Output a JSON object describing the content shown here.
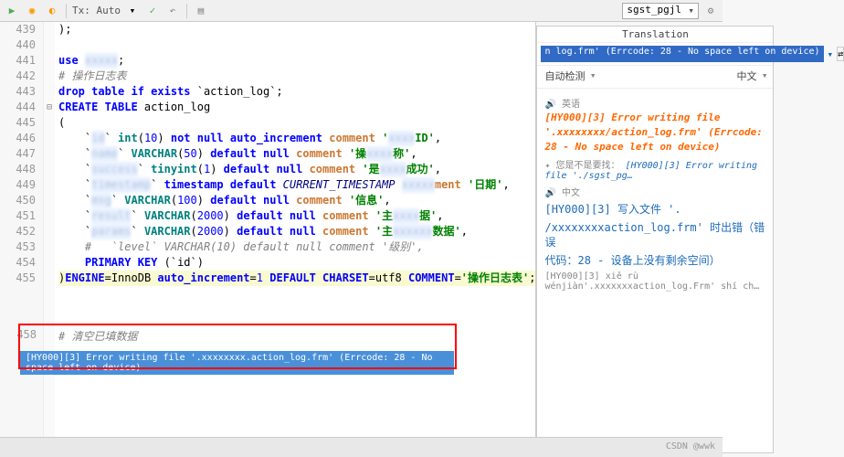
{
  "toolbar": {
    "tx_label": "Tx: Auto",
    "connection": "sgst_pgjl"
  },
  "code": {
    "lines": [
      {
        "n": 439,
        "fold": "",
        "segs": [
          {
            "t": ");",
            "c": ""
          }
        ]
      },
      {
        "n": 440,
        "fold": "",
        "segs": []
      },
      {
        "n": 441,
        "fold": "",
        "segs": [
          {
            "t": "use ",
            "c": "kw"
          },
          {
            "t": "xxxxx",
            "c": "blur"
          },
          {
            "t": ";",
            "c": ""
          }
        ]
      },
      {
        "n": 442,
        "fold": "",
        "segs": [
          {
            "t": "# 操作日志表",
            "c": "cmt"
          }
        ]
      },
      {
        "n": 443,
        "fold": "",
        "segs": [
          {
            "t": "drop table if exists",
            "c": "kw"
          },
          {
            "t": " `action_log`;",
            "c": ""
          }
        ]
      },
      {
        "n": 444,
        "fold": "⊟",
        "segs": [
          {
            "t": "CREATE TABLE",
            "c": "kw"
          },
          {
            "t": " action_log",
            "c": ""
          }
        ]
      },
      {
        "n": 445,
        "fold": "",
        "segs": [
          {
            "t": "(",
            "c": ""
          }
        ]
      },
      {
        "n": 446,
        "fold": "",
        "segs": [
          {
            "t": "    `",
            "c": ""
          },
          {
            "t": "id",
            "c": "blur"
          },
          {
            "t": "` ",
            "c": ""
          },
          {
            "t": "int",
            "c": "type"
          },
          {
            "t": "(",
            "c": ""
          },
          {
            "t": "10",
            "c": "num"
          },
          {
            "t": ") ",
            "c": ""
          },
          {
            "t": "not null auto_increment",
            "c": "kw"
          },
          {
            "t": " comment ",
            "c": "kw2"
          },
          {
            "t": "'",
            "c": "str"
          },
          {
            "t": "xxxx",
            "c": "blur"
          },
          {
            "t": "ID'",
            "c": "str"
          },
          {
            "t": ",",
            "c": ""
          }
        ]
      },
      {
        "n": 447,
        "fold": "",
        "segs": [
          {
            "t": "    `",
            "c": ""
          },
          {
            "t": "name",
            "c": "blur"
          },
          {
            "t": "` ",
            "c": ""
          },
          {
            "t": "VARCHAR",
            "c": "type"
          },
          {
            "t": "(",
            "c": ""
          },
          {
            "t": "50",
            "c": "num"
          },
          {
            "t": ") ",
            "c": ""
          },
          {
            "t": "default null",
            "c": "kw"
          },
          {
            "t": " comment ",
            "c": "kw2"
          },
          {
            "t": "'",
            "c": "str"
          },
          {
            "t": "操",
            "c": "str"
          },
          {
            "t": "xxxx",
            "c": "blur"
          },
          {
            "t": "称'",
            "c": "str"
          },
          {
            "t": ",",
            "c": ""
          }
        ]
      },
      {
        "n": 448,
        "fold": "",
        "segs": [
          {
            "t": "    `",
            "c": ""
          },
          {
            "t": "success",
            "c": "blur"
          },
          {
            "t": "` ",
            "c": ""
          },
          {
            "t": "tinyint",
            "c": "type"
          },
          {
            "t": "(",
            "c": ""
          },
          {
            "t": "1",
            "c": "num"
          },
          {
            "t": ") ",
            "c": ""
          },
          {
            "t": "default null",
            "c": "kw"
          },
          {
            "t": " comment ",
            "c": "kw2"
          },
          {
            "t": "'",
            "c": "str"
          },
          {
            "t": "是",
            "c": "str"
          },
          {
            "t": "xxxx",
            "c": "blur"
          },
          {
            "t": "成功'",
            "c": "str"
          },
          {
            "t": ",",
            "c": ""
          }
        ]
      },
      {
        "n": 449,
        "fold": "",
        "segs": [
          {
            "t": "    `",
            "c": ""
          },
          {
            "t": "timestamp",
            "c": "blur"
          },
          {
            "t": "` ",
            "c": ""
          },
          {
            "t": "timestamp default",
            "c": "kw"
          },
          {
            "t": " ",
            "c": ""
          },
          {
            "t": "CURRENT_TIMESTAMP",
            "c": "fn"
          },
          {
            "t": " ",
            "c": ""
          },
          {
            "t": "xxxxx",
            "c": "blur"
          },
          {
            "t": "ment ",
            "c": "kw2"
          },
          {
            "t": "'日期'",
            "c": "str"
          },
          {
            "t": ",",
            "c": ""
          }
        ]
      },
      {
        "n": 450,
        "fold": "",
        "segs": [
          {
            "t": "    `",
            "c": ""
          },
          {
            "t": "msg",
            "c": "blur"
          },
          {
            "t": "` ",
            "c": ""
          },
          {
            "t": "VARCHAR",
            "c": "type"
          },
          {
            "t": "(",
            "c": ""
          },
          {
            "t": "100",
            "c": "num"
          },
          {
            "t": ") ",
            "c": ""
          },
          {
            "t": "default null",
            "c": "kw"
          },
          {
            "t": " comment ",
            "c": "kw2"
          },
          {
            "t": "'信息'",
            "c": "str"
          },
          {
            "t": ",",
            "c": ""
          }
        ]
      },
      {
        "n": 451,
        "fold": "",
        "segs": [
          {
            "t": "    `",
            "c": ""
          },
          {
            "t": "result",
            "c": "blur"
          },
          {
            "t": "` ",
            "c": ""
          },
          {
            "t": "VARCHAR",
            "c": "type"
          },
          {
            "t": "(",
            "c": ""
          },
          {
            "t": "2000",
            "c": "num"
          },
          {
            "t": ") ",
            "c": ""
          },
          {
            "t": "default null",
            "c": "kw"
          },
          {
            "t": " comment ",
            "c": "kw2"
          },
          {
            "t": "'",
            "c": "str"
          },
          {
            "t": "主",
            "c": "str"
          },
          {
            "t": "xxxx",
            "c": "blur"
          },
          {
            "t": "据'",
            "c": "str"
          },
          {
            "t": ",",
            "c": ""
          }
        ]
      },
      {
        "n": 452,
        "fold": "",
        "segs": [
          {
            "t": "    `",
            "c": ""
          },
          {
            "t": "params",
            "c": "blur"
          },
          {
            "t": "` ",
            "c": ""
          },
          {
            "t": "VARCHAR",
            "c": "type"
          },
          {
            "t": "(",
            "c": ""
          },
          {
            "t": "2000",
            "c": "num"
          },
          {
            "t": ") ",
            "c": ""
          },
          {
            "t": "default null",
            "c": "kw"
          },
          {
            "t": " comment ",
            "c": "kw2"
          },
          {
            "t": "'",
            "c": "str"
          },
          {
            "t": "主",
            "c": "str"
          },
          {
            "t": "xxxxxx",
            "c": "blur"
          },
          {
            "t": "数据'",
            "c": "str"
          },
          {
            "t": ",",
            "c": ""
          }
        ]
      },
      {
        "n": 453,
        "fold": "",
        "segs": [
          {
            "t": "    #   `level` VARCHAR(10) default null comment '级别',",
            "c": "cmt"
          }
        ]
      },
      {
        "n": 454,
        "fold": "",
        "segs": [
          {
            "t": "    ",
            "c": ""
          },
          {
            "t": "PRIMARY KEY",
            "c": "kw"
          },
          {
            "t": " (`id`)",
            "c": ""
          }
        ]
      },
      {
        "n": 455,
        "fold": "",
        "hl": true,
        "segs": [
          {
            "t": ")",
            "c": ""
          },
          {
            "t": "ENGINE",
            "c": "kw"
          },
          {
            "t": "=InnoDB ",
            "c": ""
          },
          {
            "t": "auto_increment",
            "c": "kw"
          },
          {
            "t": "=",
            "c": ""
          },
          {
            "t": "1",
            "c": "num"
          },
          {
            "t": " ",
            "c": ""
          },
          {
            "t": "DEFAULT CHARSET",
            "c": "kw"
          },
          {
            "t": "=utf8 ",
            "c": ""
          },
          {
            "t": "COMMENT",
            "c": "kw"
          },
          {
            "t": "=",
            "c": ""
          },
          {
            "t": "'操作日志表'",
            "c": "str"
          },
          {
            "t": ";",
            "c": ""
          }
        ]
      }
    ],
    "line458": "458",
    "line458_comment": "# 清空已填数据"
  },
  "error_bar": "[HY000][3] Error writing file '.xxxxxxxx.action_log.frm' (Errcode: 28 - No space left on device)",
  "translation": {
    "title": "Translation",
    "input": "n log.frm' (Errcode: 28 - No space left on device)",
    "src_lang": "自动检测",
    "dst_lang": "中文",
    "speaker_en": "🔊 英语",
    "orange_1": "[HY000][3] Error writing file",
    "orange_2": "'.xxxxxxxx/action_log.frm' (Errcode:",
    "orange_3": "28 - No space left on device)",
    "suggest_prefix": "✦ 您是不是要找：",
    "suggest_link": "[HY000][3] Error writing file './sgst_pg…",
    "speaker_zh": "🔊 中文",
    "zh_1": "[HY000][3] 写入文件 '.",
    "zh_2": "/xxxxxxxxaction_log.frm' 时出错（错误",
    "zh_3": "代码：28 - 设备上没有剩余空间）",
    "pinyin": "[HY000][3] xiě rù wénjiàn'.xxxxxxxaction_log.Frm' shí ch…"
  },
  "watermark": "CSDN @wwk"
}
